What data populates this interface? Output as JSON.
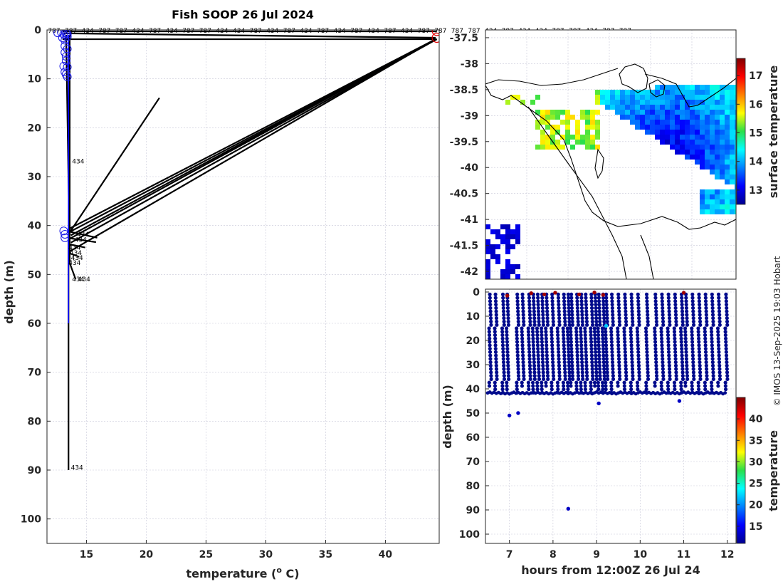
{
  "page_title": "Fish SOOP 26 Jul 2024",
  "credit": "© IMOS 13-Sep-2025 19:03 Hobart",
  "colors": {
    "axis": "#262626",
    "grid": "#c8c8d8",
    "profile_line": "#000000",
    "profile_blue": "#0000ff",
    "marker_blue": "#1a1ae6",
    "marker_red": "#e60000",
    "dot_dark": "#000a8c",
    "dot_red": "#a00000",
    "dot_cyan": "#2ec4e6"
  },
  "chart_data": [
    {
      "id": "profile",
      "type": "line",
      "title": "Fish SOOP 26 Jul 2024",
      "xlabel": "temperature (",
      "xlabel_sup": "o",
      "xlabel_tail": " C)",
      "ylabel": "depth (m)",
      "xlim": [
        11.7,
        44.5
      ],
      "ylim": [
        105,
        0
      ],
      "xticks": [
        15,
        20,
        25,
        30,
        35,
        40
      ],
      "yticks": [
        0,
        10,
        20,
        30,
        40,
        50,
        60,
        70,
        80,
        90,
        100
      ],
      "grid": true,
      "top_labels": [
        "787",
        "787",
        "434",
        "787",
        "787",
        "434",
        "787",
        "434",
        "787",
        "787",
        "434",
        "434",
        "787",
        "434",
        "787",
        "434",
        "787",
        "434",
        "787",
        "434",
        "787",
        "434",
        "787",
        "787",
        "787",
        "787",
        "434",
        "787",
        "434",
        "434",
        "787",
        "787",
        "434",
        "787",
        "787"
      ],
      "segments": [
        {
          "x": [
            13.0,
            44.3
          ],
          "y": [
            0.3,
            0.3
          ]
        },
        {
          "x": [
            13.1,
            44.2
          ],
          "y": [
            0.7,
            1.6
          ]
        },
        {
          "x": [
            13.0,
            44.3
          ],
          "y": [
            1.9,
            1.9
          ]
        },
        {
          "x": [
            44.2,
            13.6
          ],
          "y": [
            1.9,
            40.6
          ]
        },
        {
          "x": [
            44.3,
            13.6
          ],
          "y": [
            1.9,
            41.3
          ]
        },
        {
          "x": [
            44.2,
            13.7
          ],
          "y": [
            1.9,
            42.0
          ]
        },
        {
          "x": [
            44.2,
            13.6
          ],
          "y": [
            1.9,
            42.7
          ]
        },
        {
          "x": [
            44.3,
            13.7
          ],
          "y": [
            1.9,
            43.5
          ]
        },
        {
          "x": [
            44.2,
            13.6
          ],
          "y": [
            1.9,
            45.3
          ]
        },
        {
          "x": [
            21.1,
            13.6
          ],
          "y": [
            13.9,
            41.4
          ]
        },
        {
          "x": [
            13.5,
            15.9
          ],
          "y": [
            41.2,
            42.5
          ]
        },
        {
          "x": [
            13.6,
            15.8
          ],
          "y": [
            42.6,
            43.4
          ]
        },
        {
          "x": [
            13.5,
            14.9
          ],
          "y": [
            43.8,
            44.5
          ]
        },
        {
          "x": [
            13.5,
            14.4
          ],
          "y": [
            45.6,
            46.4
          ]
        },
        {
          "x": [
            13.5,
            14.1
          ],
          "y": [
            47.0,
            51.0
          ]
        },
        {
          "x": [
            13.5,
            13.5
          ],
          "y": [
            41.0,
            90.0
          ]
        },
        {
          "x": [
            13.3,
            13.6
          ],
          "y": [
            1.0,
            46.0
          ]
        },
        {
          "x": [
            13.6,
            13.6
          ],
          "y": [
            1.0,
            47.5
          ]
        }
      ],
      "blue_line": {
        "x": [
          13.5,
          13.5
        ],
        "y": [
          1,
          60
        ]
      },
      "blue_markers": [
        [
          12.6,
          0.6
        ],
        [
          12.9,
          0.5
        ],
        [
          13.1,
          0.9
        ],
        [
          13.3,
          0.7
        ],
        [
          13.4,
          0.9
        ],
        [
          13.0,
          1.6
        ],
        [
          13.2,
          2.1
        ],
        [
          13.4,
          1.4
        ],
        [
          13.2,
          3.3
        ],
        [
          13.4,
          3.9
        ],
        [
          13.2,
          4.6
        ],
        [
          13.3,
          5.4
        ],
        [
          13.3,
          6.3
        ],
        [
          13.1,
          7.4
        ],
        [
          13.4,
          7.6
        ],
        [
          13.2,
          8.6
        ],
        [
          13.3,
          9.1
        ],
        [
          13.4,
          9.6
        ],
        [
          13.1,
          41.1
        ],
        [
          13.2,
          41.8
        ],
        [
          13.2,
          42.5
        ]
      ],
      "red_markers": [
        [
          44.3,
          0.2
        ],
        [
          44.3,
          1.6
        ]
      ],
      "inline_labels": [
        {
          "text": "434",
          "x": 13.8,
          "y": 26.9
        },
        {
          "text": "434",
          "x": 14.2,
          "y": 41.8
        },
        {
          "text": "434",
          "x": 14.0,
          "y": 42.9
        },
        {
          "text": "434",
          "x": 13.5,
          "y": 44.5
        },
        {
          "text": "434",
          "x": 13.6,
          "y": 45.6
        },
        {
          "text": "434",
          "x": 13.7,
          "y": 46.6
        },
        {
          "text": "434",
          "x": 13.5,
          "y": 47.6
        },
        {
          "text": "434",
          "x": 13.8,
          "y": 51.0
        },
        {
          "text": "434",
          "x": 14.3,
          "y": 51.0
        },
        {
          "text": "434",
          "x": 13.7,
          "y": 89.5
        }
      ]
    },
    {
      "id": "map",
      "type": "heatmap",
      "colorbar_label": "surface temperature",
      "xlim": [
        139.55,
        142.5
      ],
      "ylim": [
        -42.15,
        -37.35
      ],
      "yticks": [
        -37.5,
        -38,
        -38.5,
        -39,
        -39.5,
        -40,
        -40.5,
        -41,
        -41.5,
        -42
      ],
      "ytick_labels": [
        "-37.5",
        "-38",
        "-38.5",
        "-39",
        "-39.5",
        "-40",
        "-40.5",
        "-41",
        "-41.5",
        "-42"
      ],
      "colorbar_ticks": [
        13,
        14,
        15,
        16,
        17
      ],
      "colorbar_range": [
        12.5,
        17.6
      ]
    },
    {
      "id": "time_depth",
      "type": "scatter",
      "xlabel": "hours from 12:00Z 26 Jul 24",
      "ylabel": "depth (m)",
      "colorbar_label": "temperature",
      "xlim": [
        6.45,
        12.2
      ],
      "ylim": [
        105,
        0
      ],
      "xticks": [
        7,
        8,
        9,
        10,
        11,
        12
      ],
      "yticks": [
        0,
        10,
        20,
        30,
        40,
        50,
        60,
        70,
        80,
        90,
        100
      ],
      "colorbar_ticks": [
        15,
        20,
        25,
        30,
        35,
        40
      ],
      "colorbar_range": [
        11,
        45
      ],
      "profile_times": [
        6.55,
        6.68,
        6.85,
        6.95,
        7.18,
        7.3,
        7.45,
        7.55,
        7.65,
        7.75,
        7.85,
        7.98,
        8.12,
        8.25,
        8.35,
        8.42,
        8.55,
        8.65,
        8.75,
        8.88,
        8.97,
        9.05,
        9.15,
        9.22,
        9.35,
        9.5,
        9.65,
        9.8,
        9.95,
        10.15,
        10.35,
        10.5,
        10.65,
        10.8,
        10.95,
        11.05,
        11.2,
        11.35,
        11.5,
        11.65,
        11.8,
        11.97
      ],
      "outliers": [
        {
          "x": 7.0,
          "y": 51,
          "v": 13
        },
        {
          "x": 7.2,
          "y": 50,
          "v": 13
        },
        {
          "x": 8.35,
          "y": 89.5,
          "v": 13
        },
        {
          "x": 9.05,
          "y": 46,
          "v": 13
        },
        {
          "x": 10.9,
          "y": 45,
          "v": 13
        },
        {
          "x": 9.22,
          "y": 14,
          "v": 22
        },
        {
          "x": 7.5,
          "y": 0.5,
          "v": 44
        },
        {
          "x": 7.8,
          "y": 1.0,
          "v": 44
        },
        {
          "x": 8.05,
          "y": 0.3,
          "v": 44
        },
        {
          "x": 8.6,
          "y": 1.0,
          "v": 44
        },
        {
          "x": 8.95,
          "y": 0.2,
          "v": 44
        },
        {
          "x": 9.15,
          "y": 1.2,
          "v": 44
        },
        {
          "x": 6.95,
          "y": 1.5,
          "v": 44
        },
        {
          "x": 11.0,
          "y": 0.3,
          "v": 44
        }
      ]
    }
  ]
}
